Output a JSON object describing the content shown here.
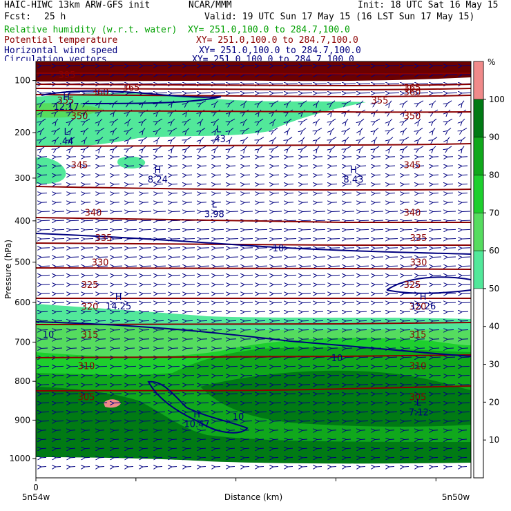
{
  "header": {
    "title": "HAIC-HIWC 13km ARW-GFS init",
    "org": "NCAR/MMM",
    "init": "Init: 18 UTC Sat 16 May 15",
    "fcst_label": "Fcst:",
    "fcst_value": "25 h",
    "valid": "Valid: 19 UTC Sun 17 May 15 (16 LST Sun 17 May 15)"
  },
  "fields": [
    {
      "name": "Relative humidity (w.r.t. water)",
      "xy": "XY= 251.0,100.0 to 284.7,100.0",
      "color": "#00a000"
    },
    {
      "name": "Potential temperature",
      "xy": "XY= 251.0,100.0 to 284.7,100.0",
      "color": "#8b0000"
    },
    {
      "name": "Horizontal wind speed",
      "xy": "XY= 251.0,100.0 to 284.7,100.0",
      "color": "#000080"
    },
    {
      "name": "Circulation vectors",
      "xy": "XY= 251.0,100.0 to 284.7,100.0",
      "color": "#000080"
    }
  ],
  "axes": {
    "y_label": "Pressure (hPa)",
    "x_label": "Distance (km)",
    "x_left": "5n54w",
    "x_right": "5n50w",
    "x_zero": "0",
    "y_ticks": [
      "100",
      "200",
      "300",
      "400",
      "500",
      "600",
      "700",
      "800",
      "900",
      "1000"
    ]
  },
  "colorbar": {
    "unit": "%",
    "tick_labels": [
      "10",
      "20",
      "30",
      "40",
      "50",
      "60",
      "70",
      "80",
      "90",
      "100"
    ]
  },
  "chart_data": {
    "type": "heatmap",
    "x_range": [
      "5n54w",
      "5n50w"
    ],
    "ylim": [
      1050,
      70
    ],
    "y_scale": "log-pressure",
    "rh_levels": [
      50,
      60,
      70,
      80,
      90,
      100
    ],
    "rh_colors": [
      "#52e89a",
      "#55dc5f",
      "#1ecf2e",
      "#10a81c",
      "#007a14",
      "#f08a8a"
    ],
    "theta_contours": [
      {
        "label": "305",
        "p": 840
      },
      {
        "label": "310",
        "p": 760
      },
      {
        "label": "315",
        "p": 680
      },
      {
        "label": "320",
        "p": 610
      },
      {
        "label": "325",
        "p": 555
      },
      {
        "label": "330",
        "p": 500
      },
      {
        "label": "335",
        "p": 440
      },
      {
        "label": "340",
        "p": 380
      },
      {
        "label": "345",
        "p": 270
      },
      {
        "label": "350",
        "p": 165
      },
      {
        "label": "355",
        "p": 135
      },
      {
        "label": "360",
        "p": 120
      },
      {
        "label": "365",
        "p": 112
      },
      {
        "label": "395",
        "p": 90
      }
    ],
    "wind_speed_labels": [
      {
        "label": "10",
        "p": 465
      },
      {
        "label": "10",
        "p": 680
      },
      {
        "label": "10",
        "p": 740
      },
      {
        "label": "10",
        "p": 890
      }
    ],
    "wind_extrema": [
      {
        "type": "H",
        "value": "12.17",
        "p": 140,
        "x_frac": 0.07
      },
      {
        "type": "L",
        "value": ".44",
        "p": 210,
        "x_frac": 0.07
      },
      {
        "type": "L",
        "value": ".43",
        "p": 205,
        "x_frac": 0.42
      },
      {
        "type": "H",
        "value": "8.24",
        "p": 295,
        "x_frac": 0.28
      },
      {
        "type": "H",
        "value": "8.43",
        "p": 295,
        "x_frac": 0.73
      },
      {
        "type": "L",
        "value": "3.98",
        "p": 375,
        "x_frac": 0.41
      },
      {
        "type": "H",
        "value": "14.25",
        "p": 600,
        "x_frac": 0.19
      },
      {
        "type": "H",
        "value": "15.26",
        "p": 600,
        "x_frac": 0.89
      },
      {
        "type": "H",
        "value": "10.47",
        "p": 900,
        "x_frac": 0.37
      },
      {
        "type": "L",
        "value": "7.12",
        "p": 870,
        "x_frac": 0.88
      }
    ]
  }
}
